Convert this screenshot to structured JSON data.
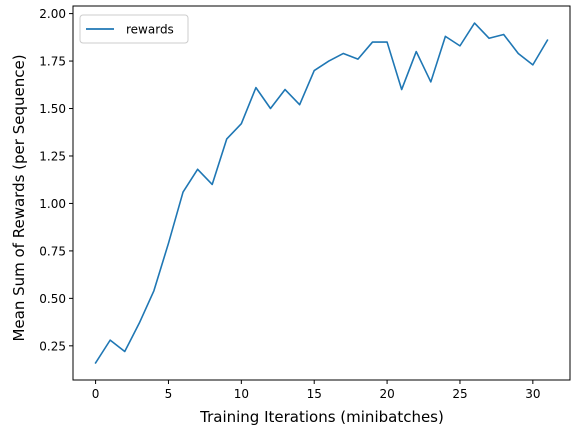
{
  "chart_data": {
    "type": "line",
    "title": "",
    "xlabel": "Training Iterations (minibatches)",
    "ylabel": "Mean Sum of Rewards (per Sequence)",
    "xlim": [
      -1.55,
      32.55
    ],
    "ylim": [
      0.07,
      2.04
    ],
    "xticks": [
      0,
      5,
      10,
      15,
      20,
      25,
      30
    ],
    "yticks": [
      0.25,
      0.5,
      0.75,
      1.0,
      1.25,
      1.5,
      1.75,
      2.0
    ],
    "ytick_labels": [
      "0.25",
      "0.50",
      "0.75",
      "1.00",
      "1.25",
      "1.50",
      "1.75",
      "2.00"
    ],
    "grid": false,
    "legend": {
      "position": "top-left",
      "entries": [
        "rewards"
      ]
    },
    "colors": {
      "line": "#1f77b4",
      "axes": "#000000",
      "legend_border": "#cccccc"
    },
    "series": [
      {
        "name": "rewards",
        "x": [
          0,
          1,
          2,
          3,
          4,
          5,
          6,
          7,
          8,
          9,
          10,
          11,
          12,
          13,
          14,
          15,
          16,
          17,
          18,
          19,
          20,
          21,
          22,
          23,
          24,
          25,
          26,
          27,
          28,
          29,
          30,
          31
        ],
        "values": [
          0.16,
          0.28,
          0.22,
          0.37,
          0.54,
          0.79,
          1.06,
          1.18,
          1.1,
          1.34,
          1.42,
          1.61,
          1.5,
          1.6,
          1.52,
          1.7,
          1.75,
          1.79,
          1.76,
          1.85,
          1.85,
          1.6,
          1.8,
          1.64,
          1.88,
          1.83,
          1.95,
          1.87,
          1.89,
          1.79,
          1.73,
          1.86
        ]
      }
    ]
  }
}
